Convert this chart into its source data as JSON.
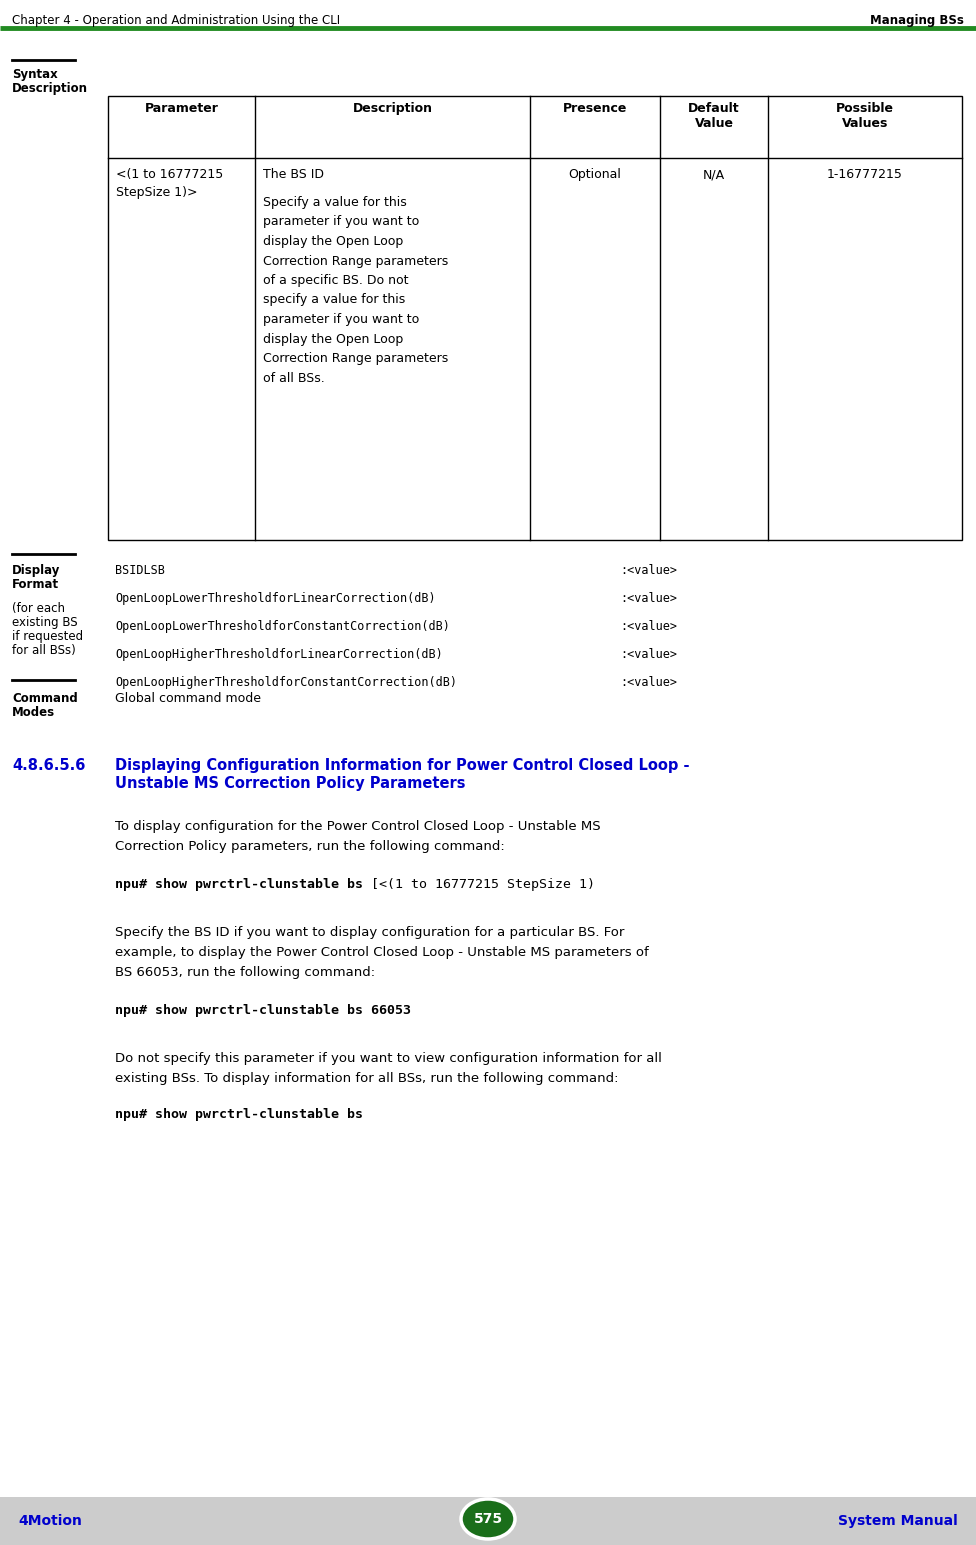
{
  "header_left": "Chapter 4 - Operation and Administration Using the CLI",
  "header_right": "Managing BSs",
  "header_line_color": "#228B22",
  "footer_left": "4Motion",
  "footer_center": "575",
  "footer_right": "System Manual",
  "footer_bg_color": "#CCCCCC",
  "footer_ellipse_color": "#1a6e1a",
  "footer_text_color": "#0000CC",
  "table_headers": [
    "Parameter",
    "Description",
    "Presence",
    "Default\nValue",
    "Possible\nValues"
  ],
  "table_row1_col0": "<(1 to 16777215\nStepSize 1)>",
  "table_row1_col1_line1": "The BS ID",
  "table_row1_col1_rest": "Specify a value for this\nparameter if you want to\ndisplay the Open Loop\nCorrection Range parameters\nof a specific BS. Do not\nspecify a value for this\nparameter if you want to\ndisplay the Open Loop\nCorrection Range parameters\nof all BSs.",
  "table_row1_col2": "Optional",
  "table_row1_col3": "N/A",
  "table_row1_col4": "1-16777215",
  "display_lines": [
    [
      "BSIDLSB",
      ":<value>"
    ],
    [
      "OpenLoopLowerThresholdforLinearCorrection(dB)",
      ":<value>"
    ],
    [
      "OpenLoopLowerThresholdforConstantCorrection(dB)",
      ":<value>"
    ],
    [
      "OpenLoopHigherThresholdforLinearCorrection(dB)",
      ":<value>"
    ],
    [
      "OpenLoopHigherThresholdforConstantCorrection(dB)",
      ":<value>"
    ]
  ],
  "command_modes_text": "Global command mode",
  "section_number": "4.8.6.5.6",
  "section_title_line1": "Displaying Configuration Information for Power Control Closed Loop -",
  "section_title_line2": "Unstable MS Correction Policy Parameters",
  "body_para1_line1": "To display configuration for the Power Control Closed Loop - Unstable MS",
  "body_para1_line2": "Correction Policy parameters, run the following command:",
  "cmd1_bold": "npu# show pwrctrl-clunstable bs",
  "cmd1_normal": " [<(1 to 16777215 StepSize 1)",
  "body_para2_line1": "Specify the BS ID if you want to display configuration for a particular BS. For",
  "body_para2_line2": "example, to display the Power Control Closed Loop - Unstable MS parameters of",
  "body_para2_line3": "BS 66053, run the following command:",
  "cmd2": "npu# show pwrctrl-clunstable bs 66053",
  "body_para3_line1": "Do not specify this parameter if you want to view configuration information for all",
  "body_para3_line2": "existing BSs. To display information for all BSs, run the following command:",
  "cmd3": "npu# show pwrctrl-clunstable bs",
  "bg_color": "#FFFFFF",
  "monospace_font": "DejaVu Sans Mono",
  "body_font": "DejaVu Sans",
  "section_title_color": "#0000CC",
  "black": "#000000"
}
